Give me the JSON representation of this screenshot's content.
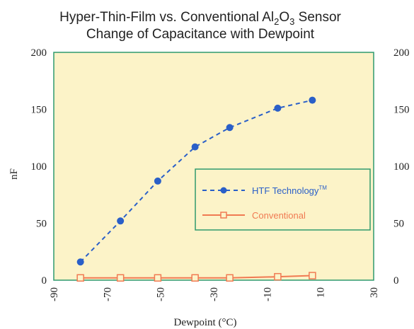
{
  "chart_data": {
    "type": "line",
    "title_line1_pre": "Hyper-Thin-Film vs. Conventional Al",
    "title_sub1": "2",
    "title_mid": "O",
    "title_sub2": "3",
    "title_line1_post": " Sensor",
    "title_line2": "Change of Capacitance with Dewpoint",
    "xlabel": "Dewpoint (°C)",
    "ylabel": "nF",
    "xlim": [
      -90,
      30
    ],
    "ylim": [
      0,
      200
    ],
    "x_ticks": [
      "-90",
      "-70",
      "-50",
      "-30",
      "-10",
      "10",
      "30"
    ],
    "y_ticks": [
      "0",
      "50",
      "100",
      "150",
      "200"
    ],
    "y_ticks_right": [
      "0",
      "50",
      "100",
      "150",
      "200"
    ],
    "grid": false,
    "legend_position": "center-right",
    "series": [
      {
        "name": "HTF Technology",
        "name_suffix": "TM",
        "color": "#2a5fc8",
        "style": "dashed",
        "marker": "circle",
        "x": [
          -80,
          -65,
          -51,
          -37,
          -24,
          -6,
          7
        ],
        "y": [
          16,
          52,
          87,
          117,
          134,
          151,
          158
        ]
      },
      {
        "name": "Conventional",
        "color": "#f07a52",
        "style": "solid",
        "marker": "square",
        "x": [
          -80,
          -65,
          -51,
          -37,
          -24,
          -6,
          7
        ],
        "y": [
          2,
          2,
          2,
          2,
          2,
          3,
          4
        ]
      }
    ],
    "colors": {
      "plot_background": "#fcf3c8",
      "frame": "#2f9a6e"
    }
  }
}
